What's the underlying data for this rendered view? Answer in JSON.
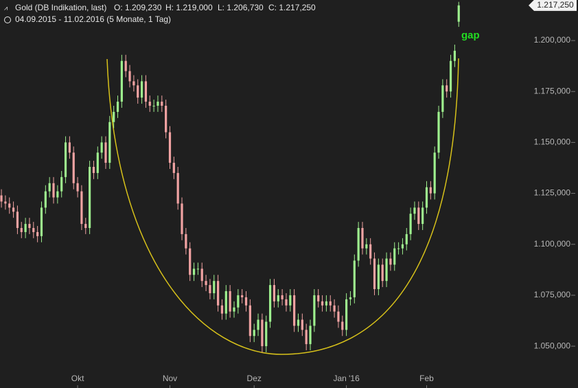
{
  "chart_data": {
    "type": "candlestick",
    "title": "Gold (DB Indikation, last)",
    "header_ohlc": [
      "O: 1.209,230",
      "H: 1.219,000",
      "L: 1.206,730",
      "C: 1.217,250"
    ],
    "subtitle": "04.09.2015 - 11.02.2016 (5 Monate, 1 Tag)",
    "annotation": "gap",
    "last_label": "1.217,250",
    "up_color": "#9ef08e",
    "down_color": "#f2a3a3",
    "open": [
      1124,
      1121,
      1120,
      1118,
      1116,
      1108,
      1106,
      1110,
      1108,
      1106,
      1104,
      1118,
      1126,
      1130,
      1123,
      1126,
      1133,
      1150,
      1145,
      1130,
      1126,
      1110,
      1108,
      1138,
      1135,
      1145,
      1150,
      1140,
      1160,
      1165,
      1170,
      1190,
      1185,
      1180,
      1178,
      1172,
      1180,
      1170,
      1168,
      1168,
      1170,
      1168,
      1155,
      1140,
      1135,
      1120,
      1105,
      1098,
      1085,
      1088,
      1088,
      1082,
      1080,
      1076,
      1082,
      1070,
      1066,
      1077,
      1067,
      1069,
      1075,
      1074,
      1070,
      1055,
      1058,
      1063,
      1050,
      1062,
      1080,
      1072,
      1075,
      1073,
      1070,
      1075,
      1060,
      1063,
      1058,
      1051,
      1060,
      1075,
      1072,
      1070,
      1072,
      1070,
      1067,
      1062,
      1058,
      1073,
      1074,
      1092,
      1108,
      1098,
      1100,
      1093,
      1078,
      1090,
      1082,
      1093,
      1090,
      1098,
      1098,
      1100,
      1105,
      1115,
      1118,
      1110,
      1118,
      1128,
      1125,
      1145,
      1165,
      1178,
      1175,
      1190,
      1209.23
    ],
    "high": [
      1127,
      1124,
      1123,
      1121,
      1119,
      1111,
      1113,
      1113,
      1111,
      1109,
      1121,
      1129,
      1133,
      1133,
      1129,
      1136,
      1153,
      1153,
      1148,
      1133,
      1129,
      1113,
      1141,
      1141,
      1148,
      1153,
      1153,
      1163,
      1168,
      1173,
      1193,
      1193,
      1188,
      1183,
      1181,
      1183,
      1183,
      1173,
      1171,
      1173,
      1173,
      1171,
      1158,
      1143,
      1138,
      1123,
      1108,
      1101,
      1091,
      1091,
      1091,
      1085,
      1083,
      1085,
      1085,
      1073,
      1080,
      1080,
      1072,
      1078,
      1078,
      1077,
      1073,
      1061,
      1066,
      1066,
      1065,
      1083,
      1083,
      1078,
      1078,
      1076,
      1078,
      1078,
      1066,
      1066,
      1061,
      1063,
      1078,
      1078,
      1075,
      1075,
      1075,
      1073,
      1070,
      1065,
      1076,
      1077,
      1095,
      1111,
      1111,
      1103,
      1103,
      1096,
      1093,
      1093,
      1096,
      1096,
      1101,
      1101,
      1103,
      1108,
      1118,
      1121,
      1121,
      1121,
      1131,
      1131,
      1148,
      1168,
      1181,
      1181,
      1193,
      1198,
      1219
    ],
    "low": [
      1118,
      1117,
      1115,
      1113,
      1105,
      1103,
      1103,
      1105,
      1103,
      1101,
      1101,
      1115,
      1123,
      1120,
      1120,
      1123,
      1130,
      1142,
      1127,
      1123,
      1107,
      1105,
      1105,
      1132,
      1132,
      1142,
      1137,
      1137,
      1157,
      1162,
      1167,
      1182,
      1177,
      1175,
      1169,
      1169,
      1167,
      1165,
      1165,
      1165,
      1165,
      1152,
      1137,
      1132,
      1117,
      1102,
      1095,
      1082,
      1082,
      1085,
      1079,
      1077,
      1073,
      1073,
      1067,
      1063,
      1063,
      1064,
      1064,
      1066,
      1071,
      1067,
      1052,
      1052,
      1055,
      1047,
      1047,
      1059,
      1069,
      1069,
      1070,
      1067,
      1067,
      1057,
      1057,
      1055,
      1048,
      1048,
      1057,
      1069,
      1067,
      1067,
      1067,
      1064,
      1059,
      1055,
      1055,
      1070,
      1071,
      1089,
      1095,
      1095,
      1090,
      1075,
      1075,
      1079,
      1079,
      1087,
      1087,
      1095,
      1095,
      1097,
      1102,
      1112,
      1107,
      1107,
      1115,
      1122,
      1122,
      1142,
      1162,
      1172,
      1172,
      1187,
      1206.73
    ],
    "close": [
      1121,
      1120,
      1118,
      1116,
      1108,
      1106,
      1110,
      1108,
      1106,
      1104,
      1118,
      1126,
      1130,
      1123,
      1126,
      1133,
      1150,
      1145,
      1130,
      1126,
      1110,
      1108,
      1138,
      1135,
      1145,
      1150,
      1140,
      1160,
      1165,
      1170,
      1190,
      1185,
      1180,
      1178,
      1172,
      1180,
      1170,
      1168,
      1168,
      1170,
      1168,
      1155,
      1140,
      1135,
      1120,
      1105,
      1098,
      1085,
      1088,
      1088,
      1082,
      1080,
      1076,
      1082,
      1070,
      1066,
      1077,
      1067,
      1069,
      1075,
      1074,
      1070,
      1055,
      1058,
      1063,
      1050,
      1062,
      1080,
      1072,
      1075,
      1073,
      1070,
      1075,
      1060,
      1063,
      1058,
      1051,
      1060,
      1075,
      1072,
      1070,
      1072,
      1070,
      1067,
      1062,
      1058,
      1073,
      1074,
      1092,
      1108,
      1098,
      1100,
      1093,
      1078,
      1090,
      1082,
      1093,
      1090,
      1098,
      1098,
      1100,
      1105,
      1115,
      1118,
      1110,
      1118,
      1128,
      1125,
      1145,
      1165,
      1178,
      1175,
      1190,
      1195,
      1217.25
    ],
    "xlim": [
      -0.35,
      114.3
    ],
    "xticks": [
      {
        "value": 19,
        "label": "Okt"
      },
      {
        "value": 42,
        "label": "Nov"
      },
      {
        "value": 63,
        "label": "Dez"
      },
      {
        "value": 86,
        "label": "Jan '16"
      },
      {
        "value": 106,
        "label": "Feb"
      }
    ],
    "ylim": [
      1037.9,
      1219.9
    ],
    "yticks": [
      {
        "value": 1050,
        "label": "1.050,000"
      },
      {
        "value": 1075,
        "label": "1.075,000"
      },
      {
        "value": 1100,
        "label": "1.100,000"
      },
      {
        "value": 1125,
        "label": "1.125,000"
      },
      {
        "value": 1150,
        "label": "1.150,000"
      },
      {
        "value": 1175,
        "label": "1.175,000"
      },
      {
        "value": 1200,
        "label": "1.200,000"
      }
    ]
  }
}
